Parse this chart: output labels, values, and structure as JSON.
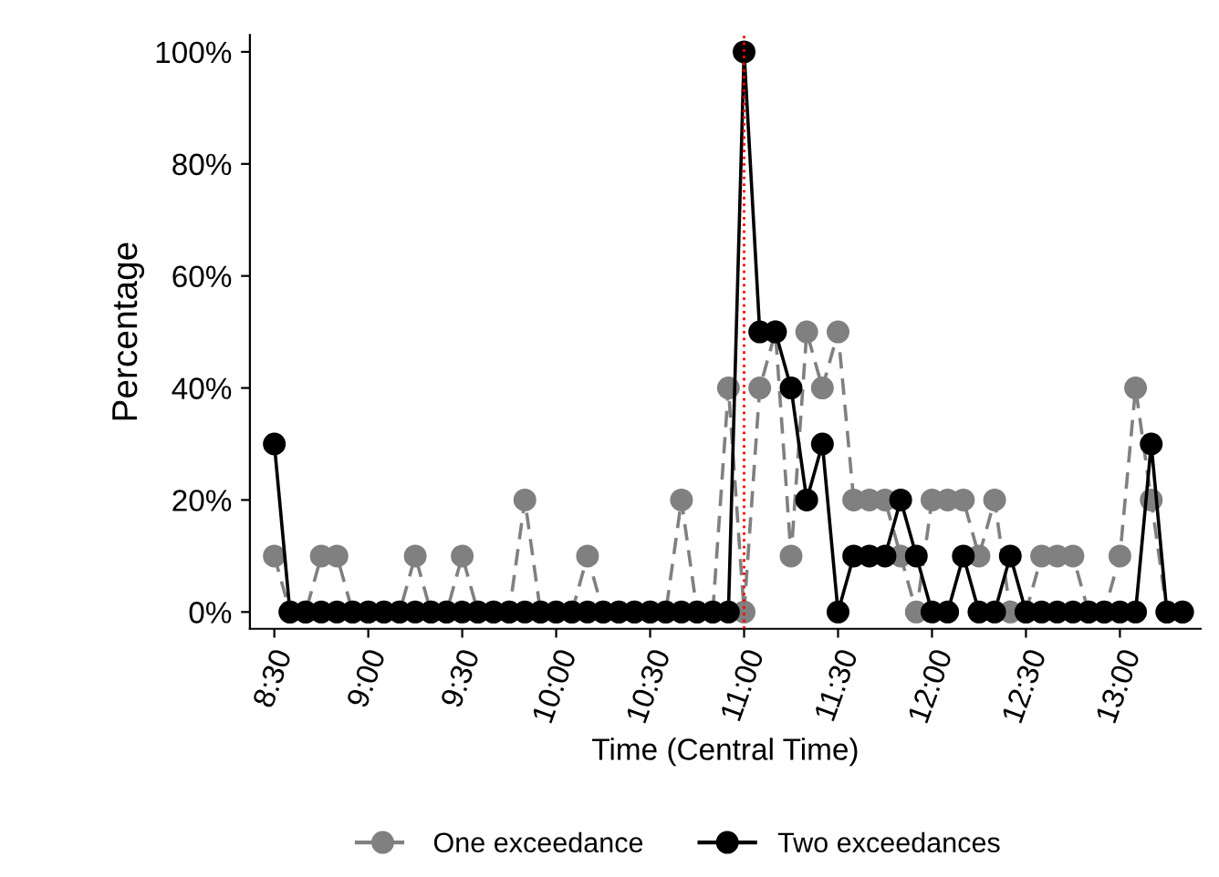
{
  "chart_data": {
    "type": "line",
    "xlabel": "Time (Central Time)",
    "ylabel": "Percentage",
    "x": [
      8.5,
      8.5833,
      8.6667,
      8.75,
      8.8333,
      8.9167,
      9,
      9.0833,
      9.1667,
      9.25,
      9.3333,
      9.4167,
      9.5,
      9.5833,
      9.6667,
      9.75,
      9.8333,
      9.9167,
      10,
      10.0833,
      10.1667,
      10.25,
      10.3333,
      10.4167,
      10.5,
      10.5833,
      10.6667,
      10.75,
      10.8333,
      10.9167,
      11,
      11.0833,
      11.1667,
      11.25,
      11.3333,
      11.4167,
      11.5,
      11.5833,
      11.6667,
      11.75,
      11.8333,
      11.9167,
      12,
      12.0833,
      12.1667,
      12.25,
      12.3333,
      12.4167,
      12.5,
      12.5833,
      12.6667,
      12.75,
      12.8333,
      12.9167,
      13,
      13.0833,
      13.1667,
      13.25,
      13.3333
    ],
    "series": [
      {
        "name": "One exceedance",
        "color": "#808080",
        "line_style": "dashed",
        "values": [
          10,
          0,
          0,
          10,
          10,
          0,
          0,
          0,
          0,
          10,
          0,
          0,
          10,
          0,
          0,
          0,
          20,
          0,
          0,
          0,
          10,
          0,
          0,
          0,
          0,
          0,
          20,
          0,
          0,
          40,
          0,
          40,
          50,
          10,
          50,
          40,
          50,
          20,
          20,
          20,
          10,
          0,
          20,
          20,
          20,
          10,
          20,
          0,
          0,
          10,
          10,
          10,
          0,
          0,
          10,
          40,
          20,
          0,
          0
        ]
      },
      {
        "name": "Two exceedances",
        "color": "#000000",
        "line_style": "solid",
        "values": [
          30,
          0,
          0,
          0,
          0,
          0,
          0,
          0,
          0,
          0,
          0,
          0,
          0,
          0,
          0,
          0,
          0,
          0,
          0,
          0,
          0,
          0,
          0,
          0,
          0,
          0,
          0,
          0,
          0,
          0,
          100,
          50,
          50,
          40,
          20,
          30,
          0,
          10,
          10,
          10,
          20,
          10,
          0,
          0,
          10,
          0,
          0,
          10,
          0,
          0,
          0,
          0,
          0,
          0,
          0,
          0,
          30,
          0,
          0
        ]
      }
    ],
    "marker": "circle",
    "xlim": [
      8.37,
      13.43
    ],
    "xticks": [
      {
        "value": 8.5,
        "label": "8:30"
      },
      {
        "value": 9,
        "label": "9:00"
      },
      {
        "value": 9.5,
        "label": "9:30"
      },
      {
        "value": 10,
        "label": "10:00"
      },
      {
        "value": 10.5,
        "label": "10:30"
      },
      {
        "value": 11,
        "label": "11:00"
      },
      {
        "value": 11.5,
        "label": "11:30"
      },
      {
        "value": 12,
        "label": "12:00"
      },
      {
        "value": 12.5,
        "label": "12:30"
      },
      {
        "value": 13,
        "label": "13:00"
      }
    ],
    "ylim": [
      -3,
      103
    ],
    "yticks": [
      {
        "value": 0,
        "label": "0%"
      },
      {
        "value": 20,
        "label": "20%"
      },
      {
        "value": 40,
        "label": "40%"
      },
      {
        "value": 60,
        "label": "60%"
      },
      {
        "value": 80,
        "label": "80%"
      },
      {
        "value": 100,
        "label": "100%"
      }
    ],
    "ref_lines": [
      {
        "axis": "x",
        "value": 11,
        "color": "#ff0000",
        "line_style": "dotted"
      }
    ],
    "grid": false,
    "legend": "bottom"
  }
}
